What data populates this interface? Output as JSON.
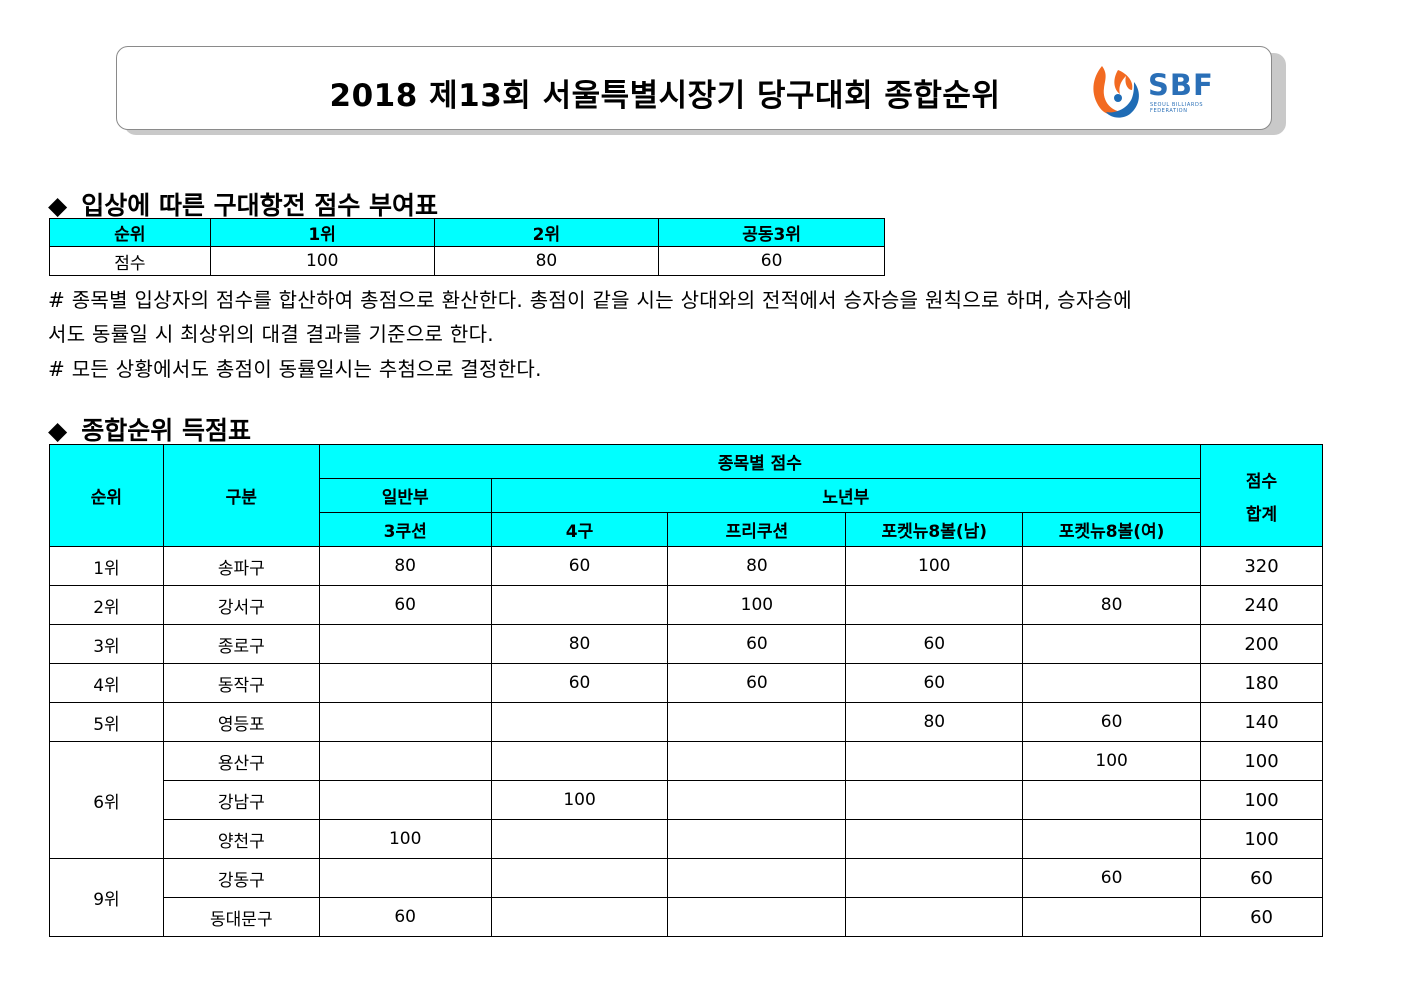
{
  "title": "2018 제13회 서울특별시장기 당구대회 종합순위",
  "logo": {
    "text": "SBF",
    "subtitle": "SEOUL BILLIARDS FEDERATION",
    "brand_color": "#2a6fb7",
    "flame_colors": [
      "#f26a21",
      "#1f6cb5"
    ]
  },
  "section1": {
    "heading": "입상에 따른 구대항전 점수 부여표",
    "headers": [
      "순위",
      "1위",
      "2위",
      "공동3위"
    ],
    "row": [
      "점수",
      "100",
      "80",
      "60"
    ]
  },
  "notes": [
    "# 종목별 입상자의 점수를 합산하여 총점으로 환산한다. 총점이 같을 시는 상대와의 전적에서 승자승을 원칙으로 하며, 승자승에",
    "서도 동률일 시 최상위의 대결 결과를 기준으로 한다.",
    "# 모든 상황에서도 총점이 동률일시는 추첨으로 결정한다."
  ],
  "section2": {
    "heading": "종합순위 득점표",
    "header_rank": "순위",
    "header_district": "구분",
    "header_event_scores": "종목별 점수",
    "header_general": "일반부",
    "header_senior": "노년부",
    "header_total": [
      "점수",
      "합계"
    ],
    "events": [
      "3쿠션",
      "4구",
      "프리쿠션",
      "포켓뉴8볼(남)",
      "포켓뉴8볼(여)"
    ],
    "rows": [
      {
        "rank": "1위",
        "district": "송파구",
        "scores": [
          "80",
          "60",
          "80",
          "100",
          ""
        ],
        "total": "320"
      },
      {
        "rank": "2위",
        "district": "강서구",
        "scores": [
          "60",
          "",
          "100",
          "",
          "80"
        ],
        "total": "240"
      },
      {
        "rank": "3위",
        "district": "종로구",
        "scores": [
          "",
          "80",
          "60",
          "60",
          ""
        ],
        "total": "200"
      },
      {
        "rank": "4위",
        "district": "동작구",
        "scores": [
          "",
          "60",
          "60",
          "60",
          ""
        ],
        "total": "180"
      },
      {
        "rank": "5위",
        "district": "영등포",
        "scores": [
          "",
          "",
          "",
          "80",
          "60"
        ],
        "total": "140"
      },
      {
        "rank": "6위",
        "district": "용산구",
        "scores": [
          "",
          "",
          "",
          "",
          "100"
        ],
        "total": "100"
      },
      {
        "rank": "",
        "district": "강남구",
        "scores": [
          "",
          "100",
          "",
          "",
          ""
        ],
        "total": "100"
      },
      {
        "rank": "",
        "district": "양천구",
        "scores": [
          "100",
          "",
          "",
          "",
          ""
        ],
        "total": "100"
      },
      {
        "rank": "9위",
        "district": "강동구",
        "scores": [
          "",
          "",
          "",
          "",
          "60"
        ],
        "total": "60"
      },
      {
        "rank": "",
        "district": "동대문구",
        "scores": [
          "60",
          "",
          "",
          "",
          ""
        ],
        "total": "60"
      }
    ]
  },
  "colors": {
    "header_bg": "#00ffff"
  }
}
